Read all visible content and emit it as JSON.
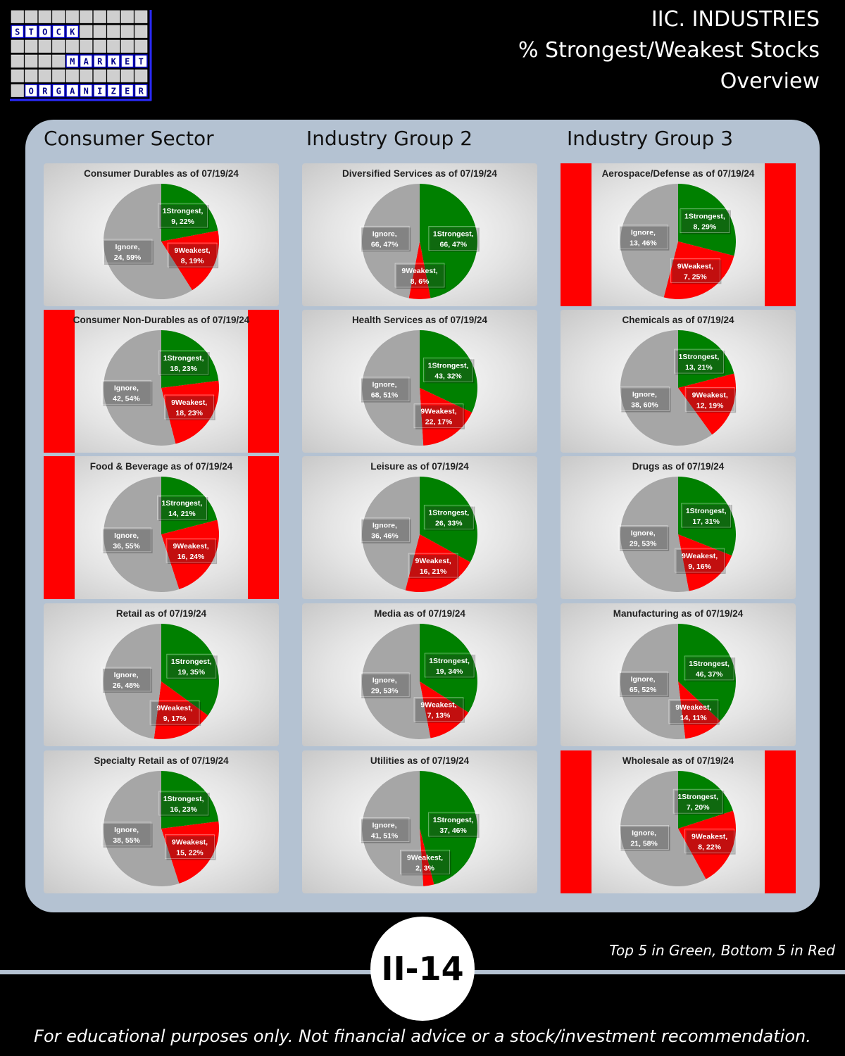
{
  "logo": {
    "rows": [
      {
        "text": "STOCK",
        "start": 0
      },
      {
        "text": "MARKET",
        "start": 4
      },
      {
        "text": "ORGANIZER",
        "start": 1
      }
    ]
  },
  "header": {
    "line1": "IIC. INDUSTRIES",
    "line2": "% Strongest/Weakest Stocks",
    "line3": "Overview"
  },
  "columns": [
    "Consumer Sector",
    "Industry Group 2",
    "Industry Group 3"
  ],
  "colors": {
    "strongest": "#008000",
    "weakest": "#ff0000",
    "ignore": "#a6a6a6",
    "highlight": "#ff0000"
  },
  "legend_note": "Top 5 in Green, Bottom 5 in Red",
  "page_badge": "II-14",
  "disclaimer": "For educational purposes only. Not financial advice or a stock/investment recommendation.",
  "chart_data": [
    {
      "type": "pie",
      "column": 0,
      "row": 0,
      "title": "Consumer Durables as of 07/19/24",
      "highlight": false,
      "slices": [
        {
          "label": "1Strongest",
          "count": 9,
          "pct": 22
        },
        {
          "label": "9Weakest",
          "count": 8,
          "pct": 19
        },
        {
          "label": "Ignore",
          "count": 24,
          "pct": 59
        }
      ]
    },
    {
      "type": "pie",
      "column": 0,
      "row": 1,
      "title": "Consumer  Non-Durables  as of 07/19/24",
      "highlight": true,
      "slices": [
        {
          "label": "1Strongest",
          "count": 18,
          "pct": 23
        },
        {
          "label": "9Weakest",
          "count": 18,
          "pct": 23
        },
        {
          "label": "Ignore",
          "count": 42,
          "pct": 54
        }
      ]
    },
    {
      "type": "pie",
      "column": 0,
      "row": 2,
      "title": "Food & Beverage as of 07/19/24",
      "highlight": true,
      "slices": [
        {
          "label": "1Strongest",
          "count": 14,
          "pct": 21
        },
        {
          "label": "9Weakest",
          "count": 16,
          "pct": 24
        },
        {
          "label": "Ignore",
          "count": 36,
          "pct": 55
        }
      ]
    },
    {
      "type": "pie",
      "column": 0,
      "row": 3,
      "title": "Retail as of 07/19/24",
      "highlight": false,
      "slices": [
        {
          "label": "1Strongest",
          "count": 19,
          "pct": 35
        },
        {
          "label": "9Weakest",
          "count": 9,
          "pct": 17
        },
        {
          "label": "Ignore",
          "count": 26,
          "pct": 48
        }
      ]
    },
    {
      "type": "pie",
      "column": 0,
      "row": 4,
      "title": "Specialty Retail as of 07/19/24",
      "highlight": false,
      "slices": [
        {
          "label": "1Strongest",
          "count": 16,
          "pct": 23
        },
        {
          "label": "9Weakest",
          "count": 15,
          "pct": 22
        },
        {
          "label": "Ignore",
          "count": 38,
          "pct": 55
        }
      ]
    },
    {
      "type": "pie",
      "column": 1,
      "row": 0,
      "title": "Diversified Services as of 07/19/24",
      "highlight": false,
      "slices": [
        {
          "label": "1Strongest",
          "count": 66,
          "pct": 47
        },
        {
          "label": "9Weakest",
          "count": 8,
          "pct": 6
        },
        {
          "label": "Ignore",
          "count": 66,
          "pct": 47
        }
      ]
    },
    {
      "type": "pie",
      "column": 1,
      "row": 1,
      "title": "Health Services as of 07/19/24",
      "highlight": false,
      "slices": [
        {
          "label": "1Strongest",
          "count": 43,
          "pct": 32
        },
        {
          "label": "9Weakest",
          "count": 22,
          "pct": 17
        },
        {
          "label": "Ignore",
          "count": 68,
          "pct": 51
        }
      ]
    },
    {
      "type": "pie",
      "column": 1,
      "row": 2,
      "title": "Leisure as of 07/19/24",
      "highlight": false,
      "slices": [
        {
          "label": "1Strongest",
          "count": 26,
          "pct": 33
        },
        {
          "label": "9Weakest",
          "count": 16,
          "pct": 21
        },
        {
          "label": "Ignore",
          "count": 36,
          "pct": 46
        }
      ]
    },
    {
      "type": "pie",
      "column": 1,
      "row": 3,
      "title": "Media as of 07/19/24",
      "highlight": false,
      "slices": [
        {
          "label": "1Strongest",
          "count": 19,
          "pct": 34
        },
        {
          "label": "9Weakest",
          "count": 7,
          "pct": 13
        },
        {
          "label": "Ignore",
          "count": 29,
          "pct": 53
        }
      ]
    },
    {
      "type": "pie",
      "column": 1,
      "row": 4,
      "title": "Utilities as of 07/19/24",
      "highlight": false,
      "slices": [
        {
          "label": "1Strongest",
          "count": 37,
          "pct": 46
        },
        {
          "label": "9Weakest",
          "count": 2,
          "pct": 3
        },
        {
          "label": "Ignore",
          "count": 41,
          "pct": 51
        }
      ]
    },
    {
      "type": "pie",
      "column": 2,
      "row": 0,
      "title": "Aerospace/Defense as of 07/19/24",
      "highlight": true,
      "slices": [
        {
          "label": "1Strongest",
          "count": 8,
          "pct": 29
        },
        {
          "label": "9Weakest",
          "count": 7,
          "pct": 25
        },
        {
          "label": "Ignore",
          "count": 13,
          "pct": 46
        }
      ]
    },
    {
      "type": "pie",
      "column": 2,
      "row": 1,
      "title": "Chemicals as of 07/19/24",
      "highlight": false,
      "slices": [
        {
          "label": "1Strongest",
          "count": 13,
          "pct": 21
        },
        {
          "label": "9Weakest",
          "count": 12,
          "pct": 19
        },
        {
          "label": "Ignore",
          "count": 38,
          "pct": 60
        }
      ]
    },
    {
      "type": "pie",
      "column": 2,
      "row": 2,
      "title": "Drugs as of 07/19/24",
      "highlight": false,
      "slices": [
        {
          "label": "1Strongest",
          "count": 17,
          "pct": 31
        },
        {
          "label": "9Weakest",
          "count": 9,
          "pct": 16
        },
        {
          "label": "Ignore",
          "count": 29,
          "pct": 53
        }
      ]
    },
    {
      "type": "pie",
      "column": 2,
      "row": 3,
      "title": "Manufacturing as of 07/19/24",
      "highlight": false,
      "slices": [
        {
          "label": "1Strongest",
          "count": 46,
          "pct": 37
        },
        {
          "label": "9Weakest",
          "count": 14,
          "pct": 11
        },
        {
          "label": "Ignore",
          "count": 65,
          "pct": 52
        }
      ]
    },
    {
      "type": "pie",
      "column": 2,
      "row": 4,
      "title": "Wholesale as of 07/19/24",
      "highlight": true,
      "slices": [
        {
          "label": "1Strongest",
          "count": 7,
          "pct": 20
        },
        {
          "label": "9Weakest",
          "count": 8,
          "pct": 22
        },
        {
          "label": "Ignore",
          "count": 21,
          "pct": 58
        }
      ]
    }
  ]
}
